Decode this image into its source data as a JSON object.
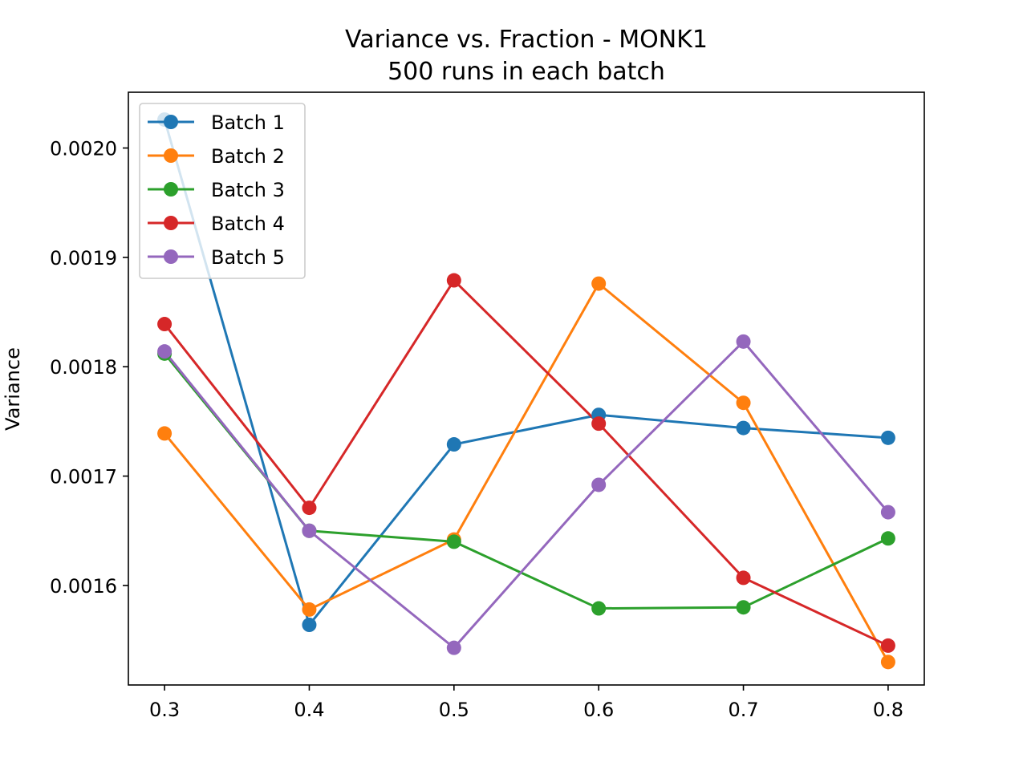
{
  "chart_data": {
    "type": "line",
    "title": "Variance vs. Fraction - MONK1",
    "subtitle": "500 runs in each batch",
    "xlabel": "",
    "ylabel": "Variance",
    "x": [
      0.3,
      0.4,
      0.5,
      0.6,
      0.7,
      0.8
    ],
    "x_tick_labels": [
      "0.3",
      "0.4",
      "0.5",
      "0.6",
      "0.7",
      "0.8"
    ],
    "y_ticks": [
      0.0016,
      0.0017,
      0.0018,
      0.0019,
      0.002
    ],
    "y_tick_labels": [
      "0.0016",
      "0.0017",
      "0.0018",
      "0.0019",
      "0.0020"
    ],
    "xlim": [
      0.275,
      0.825
    ],
    "ylim": [
      0.001509,
      0.002051
    ],
    "grid": false,
    "legend_position": "upper-left",
    "markers": "circle",
    "series": [
      {
        "name": "Batch 1",
        "color": "#1f77b4",
        "values": [
          0.002026,
          0.001564,
          0.001729,
          0.001756,
          0.001744,
          0.001735
        ]
      },
      {
        "name": "Batch 2",
        "color": "#ff7f0e",
        "values": [
          0.001739,
          0.001578,
          0.001642,
          0.001876,
          0.001767,
          0.00153
        ]
      },
      {
        "name": "Batch 3",
        "color": "#2ca02c",
        "values": [
          0.001812,
          0.00165,
          0.00164,
          0.001579,
          0.00158,
          0.001643
        ]
      },
      {
        "name": "Batch 4",
        "color": "#d62728",
        "values": [
          0.001839,
          0.001671,
          0.001879,
          0.001748,
          0.001607,
          0.001545
        ]
      },
      {
        "name": "Batch 5",
        "color": "#9467bd",
        "values": [
          0.001814,
          0.00165,
          0.001543,
          0.001692,
          0.001823,
          0.001667
        ]
      }
    ]
  }
}
